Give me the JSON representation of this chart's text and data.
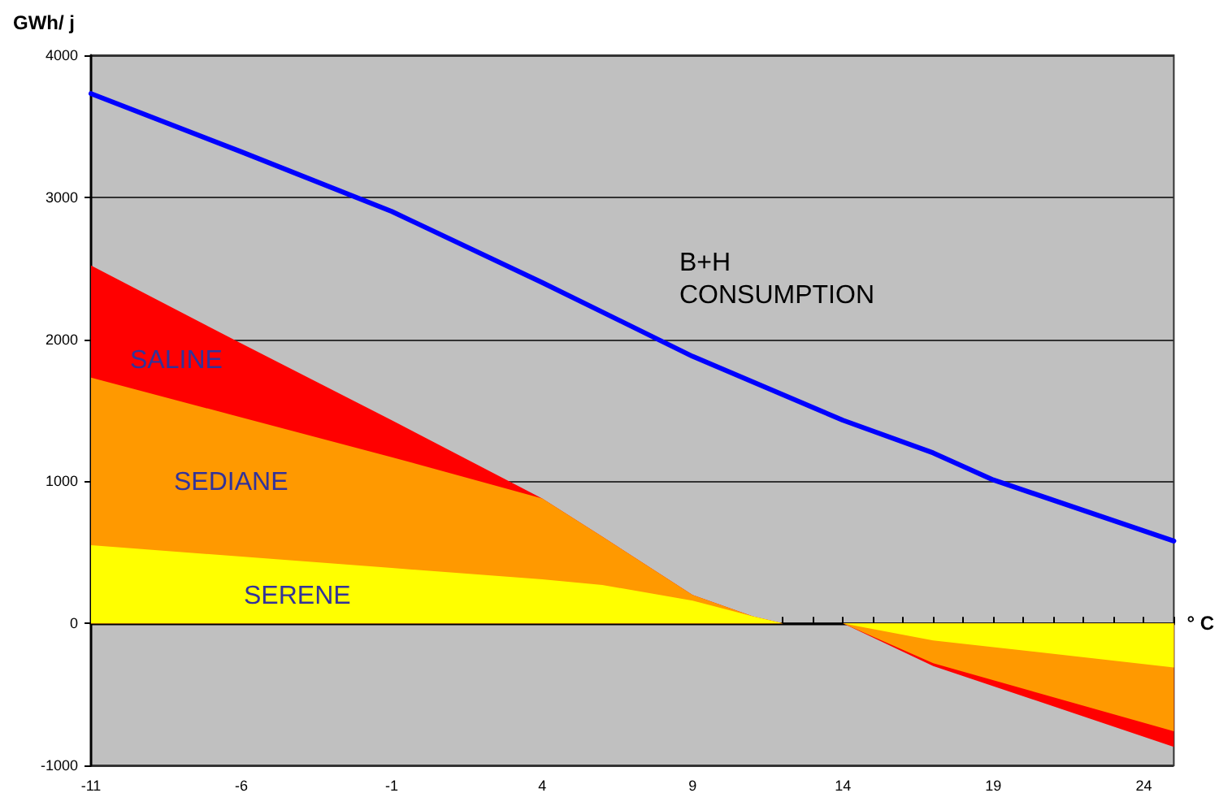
{
  "chart_data": {
    "type": "area",
    "ylabel": "GWh/ j",
    "xlabel": "° C",
    "stacked": true,
    "x": [
      -11,
      -6,
      -1,
      4,
      6,
      9,
      11,
      12,
      14,
      17,
      25
    ],
    "series": [
      {
        "name": "SERENE",
        "color": "#ffff00",
        "values": [
          550,
          470,
          390,
          310,
          270,
          160,
          50,
          0,
          0,
          -120,
          -310
        ]
      },
      {
        "name": "SEDIANE",
        "color": "#ff9900",
        "values": [
          1180,
          980,
          780,
          570,
          340,
          40,
          0,
          0,
          0,
          -160,
          -450
        ]
      },
      {
        "name": "SALINE",
        "color": "#ff0000",
        "values": [
          790,
          520,
          260,
          0,
          0,
          0,
          0,
          0,
          0,
          -20,
          -110
        ]
      },
      {
        "name": "B+H CONSUMPTION",
        "type": "line",
        "color": "#0000ff",
        "x": [
          -11,
          -6,
          -1,
          4,
          9,
          14,
          17,
          19,
          25
        ],
        "values": [
          3730,
          3320,
          2900,
          2400,
          1880,
          1430,
          1200,
          1010,
          580
        ]
      }
    ],
    "xlim": [
      -11,
      25
    ],
    "xticks": [
      -11,
      {
        "value": -10,
        "label": null
      },
      {
        "value": -9,
        "label": null
      },
      {
        "value": -8,
        "label": null
      },
      {
        "value": -7,
        "label": null
      },
      -6,
      {
        "value": -5,
        "label": null
      },
      {
        "value": -4,
        "label": null
      },
      {
        "value": -3,
        "label": null
      },
      {
        "value": -2,
        "label": null
      },
      -1,
      {
        "value": 0,
        "label": null
      },
      {
        "value": 1,
        "label": null
      },
      {
        "value": 2,
        "label": null
      },
      {
        "value": 3,
        "label": null
      },
      4,
      {
        "value": 5,
        "label": null
      },
      {
        "value": 6,
        "label": null
      },
      {
        "value": 7,
        "label": null
      },
      {
        "value": 8,
        "label": null
      },
      9,
      {
        "value": 10,
        "label": null
      },
      {
        "value": 11,
        "label": null
      },
      {
        "value": 12,
        "label": null
      },
      {
        "value": 13,
        "label": null
      },
      14,
      {
        "value": 15,
        "label": null
      },
      {
        "value": 16,
        "label": null
      },
      {
        "value": 17,
        "label": null
      },
      {
        "value": 18,
        "label": null
      },
      19,
      {
        "value": 20,
        "label": null
      },
      {
        "value": 21,
        "label": null
      },
      {
        "value": 22,
        "label": null
      },
      {
        "value": 23,
        "label": null
      },
      24,
      {
        "value": 25,
        "label": null
      }
    ],
    "ylim": [
      -1000,
      4000
    ],
    "yticks": [
      -1000,
      0,
      1000,
      2000,
      3000,
      4000
    ],
    "grid": "y",
    "legend": false,
    "marker": "none",
    "line_style": "solid"
  }
}
